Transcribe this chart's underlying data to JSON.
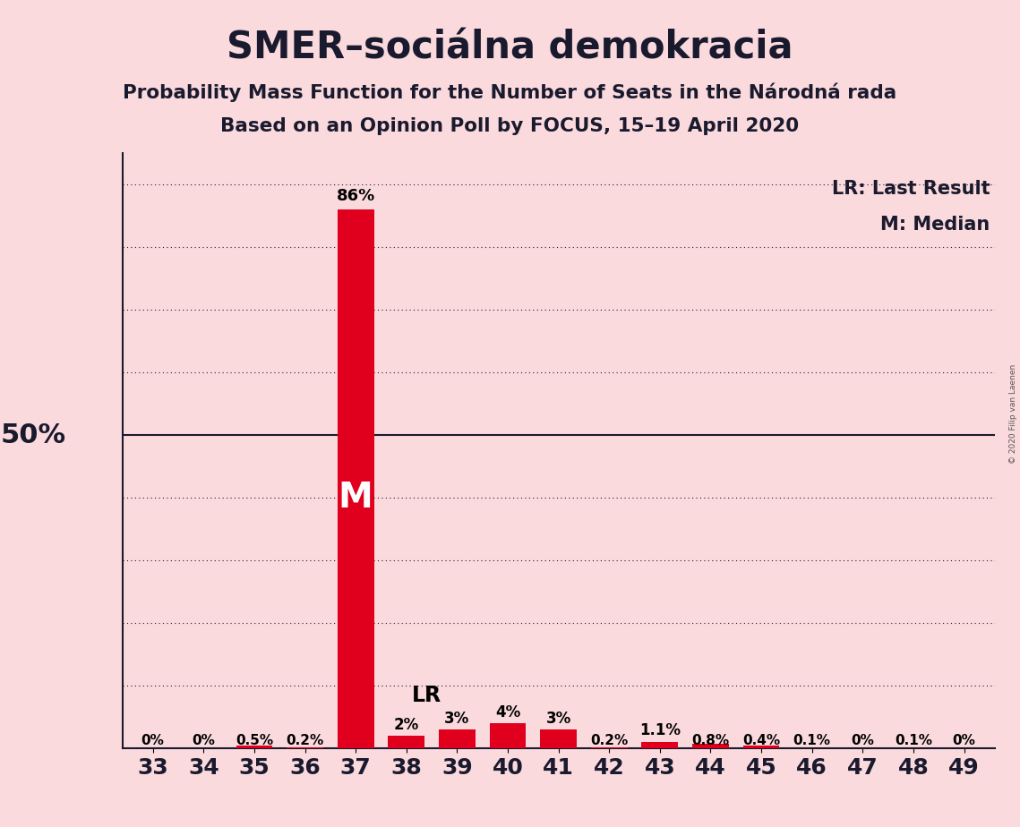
{
  "title": "SMER–sociálna demokracia",
  "subtitle1": "Probability Mass Function for the Number of Seats in the Národná rada",
  "subtitle2": "Based on an Opinion Poll by FOCUS, 15–19 April 2020",
  "copyright": "© 2020 Filip van Laenen",
  "categories": [
    33,
    34,
    35,
    36,
    37,
    38,
    39,
    40,
    41,
    42,
    43,
    44,
    45,
    46,
    47,
    48,
    49
  ],
  "values": [
    0.0,
    0.0,
    0.5,
    0.2,
    86.0,
    2.0,
    3.0,
    4.0,
    3.0,
    0.2,
    1.1,
    0.8,
    0.4,
    0.1,
    0.0,
    0.1,
    0.0
  ],
  "labels": [
    "0%",
    "0%",
    "0.5%",
    "0.2%",
    "86%",
    "2%",
    "3%",
    "4%",
    "3%",
    "0.2%",
    "1.1%",
    "0.8%",
    "0.4%",
    "0.1%",
    "0%",
    "0.1%",
    "0%"
  ],
  "bar_color": "#e0001e",
  "background_color": "#fadadd",
  "median_seat": 37,
  "last_result_seat": 38,
  "median_label": "M",
  "lr_label": "LR",
  "legend_lr": "LR: Last Result",
  "legend_m": "M: Median",
  "ylabel_50": "50%",
  "ylim": [
    0,
    95
  ],
  "yticks": [
    10,
    20,
    30,
    40,
    50,
    60,
    70,
    80,
    90
  ],
  "title_fontsize": 30,
  "subtitle_fontsize": 15.5,
  "bar_label_fontsize": 12,
  "axis_label_fontsize": 18,
  "legend_fontsize": 15,
  "median_label_fontsize": 26,
  "lr_label_fontsize": 17,
  "ylabel50_fontsize": 22
}
